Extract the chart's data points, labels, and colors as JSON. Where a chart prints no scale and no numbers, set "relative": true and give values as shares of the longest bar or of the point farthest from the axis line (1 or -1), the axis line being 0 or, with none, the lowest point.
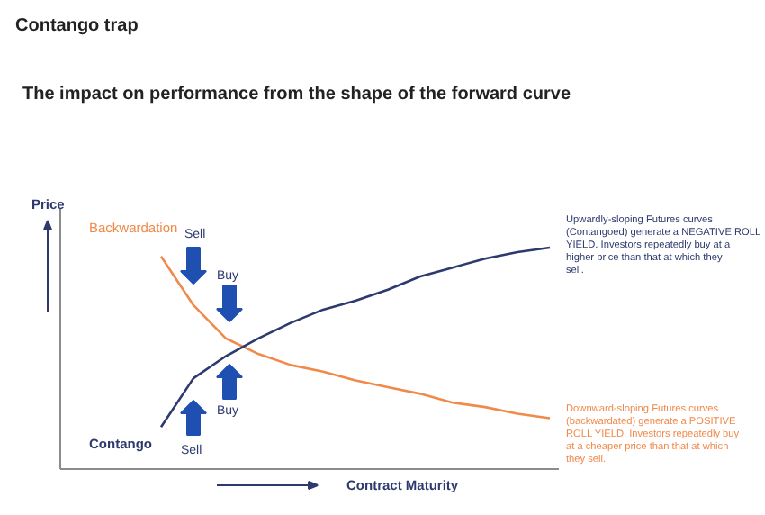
{
  "chart_data": {
    "type": "line",
    "relative": true,
    "title": "Contango trap",
    "subtitle": "The impact on performance from the shape of the forward curve",
    "xlabel": "Contract Maturity",
    "categories": [
      null,
      null,
      null,
      null,
      null,
      null,
      null,
      null,
      null,
      null,
      null,
      null,
      null
    ],
    "series": [
      {
        "name": "Backwardation",
        "color": "#f08a4b",
        "values": [
          0.96,
          0.74,
          0.59,
          0.52,
          0.47,
          0.44,
          0.4,
          0.37,
          0.34,
          0.3,
          0.28,
          0.25,
          0.23
        ]
      },
      {
        "name": "Contango",
        "color": "#2e3a6e",
        "values": [
          0.19,
          0.41,
          0.51,
          0.59,
          0.66,
          0.72,
          0.76,
          0.81,
          0.87,
          0.91,
          0.95,
          0.98,
          1
        ]
      }
    ],
    "annotations": [
      "Sell",
      "Buy",
      "Buy",
      "Sell",
      "Upwardly-sloping Futures curves (Contangoed) generate a NEGATIVE ROLL YIELD. Investors repeatedly buy at a higher price than that at which they sell.",
      "Downward-sloping Futures curves (backwardated) generate a POSITIVE ROLL YIELD.  Investors repeatedly buy at a cheaper price than that at which they sell.",
      "Price"
    ],
    "grid": false,
    "marker": "none",
    "line_style": "solid"
  }
}
